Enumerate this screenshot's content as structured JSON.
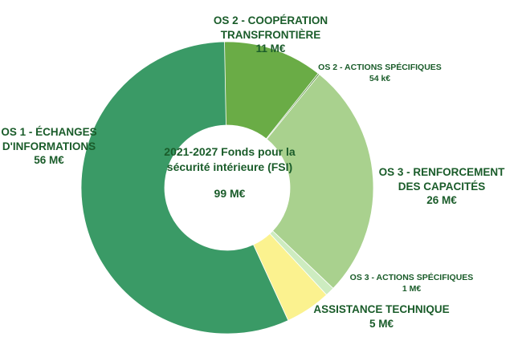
{
  "chart_data": {
    "type": "donut",
    "center": {
      "line1": "2021-2027",
      "line2": "Fonds pour la sécurité",
      "line3": "intérieure (FSI)",
      "total": "99 M€"
    },
    "slices": [
      {
        "name": "OS 2 - COOPÉRATION TRANSFRONTIÈRE",
        "line1": "OS 2 - COOPÉRATION",
        "line2": "TRANSFRONTIÈRE",
        "value_label": "11 M€",
        "value": 11,
        "color": "#6aac46"
      },
      {
        "name": "OS 2 - ACTIONS SPÉCIFIQUES",
        "line1": "OS 2 - ACTIONS SPÉCIFIQUES",
        "line2": "",
        "value_label": "54 k€",
        "value": 0.054,
        "color": "#4f8a33"
      },
      {
        "name": "OS 3 - RENFORCEMENT DES CAPACITÉS",
        "line1": "OS 3 - RENFORCEMENT",
        "line2": "DES CAPACITÉS",
        "value_label": "26 M€",
        "value": 26,
        "color": "#a9d18e"
      },
      {
        "name": "OS 3 - ACTIONS SPÉCIFIQUES",
        "line1": "OS 3 - ACTIONS SPÉCIFIQUES",
        "line2": "",
        "value_label": "1 M€",
        "value": 1,
        "color": "#cdecc0"
      },
      {
        "name": "ASSISTANCE TECHNIQUE",
        "line1": "ASSISTANCE TECHNIQUE",
        "line2": "",
        "value_label": "5 M€",
        "value": 5,
        "color": "#fbf28f"
      },
      {
        "name": "OS 1 - ÉCHANGES D'INFORMATIONS",
        "line1": "OS 1 - ÉCHANGES",
        "line2": "D'INFORMATIONS",
        "value_label": "56 M€",
        "value": 56,
        "color": "#3a9a66"
      }
    ]
  }
}
